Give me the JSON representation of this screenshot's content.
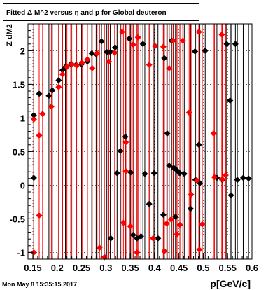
{
  "chart_data": {
    "type": "scatter",
    "title": "Fitted Δ M^2 versus η and p for Global deuteron",
    "xlabel": "p[GeV/c]",
    "ylabel": "Z dM2",
    "xlim": [
      0.14,
      0.6
    ],
    "ylim": [
      -1.1,
      2.4
    ],
    "x_ticks": [
      "0.15",
      "0.2",
      "0.25",
      "0.3",
      "0.35",
      "0.4",
      "0.45",
      "0.5",
      "0.55",
      "0.6"
    ],
    "y_ticks": [
      "-1",
      "-0.5",
      "0",
      "0.5",
      "1",
      "1.5",
      "2"
    ],
    "grid": true,
    "footer": "Mon May  8 15:35:15 2017",
    "series": [
      {
        "color": "#000000",
        "marker": "diamond",
        "points": [
          [
            0.152,
            1.04
          ],
          [
            0.152,
            0.11
          ],
          [
            0.163,
            1.36
          ],
          [
            0.183,
            1.33
          ],
          [
            0.19,
            1.41
          ],
          [
            0.203,
            1.56
          ],
          [
            0.211,
            1.71
          ],
          [
            0.217,
            1.76
          ],
          [
            0.228,
            1.8
          ],
          [
            0.239,
            1.79
          ],
          [
            0.25,
            1.8
          ],
          [
            0.262,
            1.84
          ],
          [
            0.271,
            1.96
          ],
          [
            0.28,
            1.95
          ],
          [
            0.291,
            2.14
          ],
          [
            0.302,
            1.98
          ],
          [
            0.309,
            1.98
          ],
          [
            0.319,
            2.05
          ],
          [
            0.31,
            -0.79
          ],
          [
            0.323,
            0.18
          ],
          [
            0.33,
            0.51
          ],
          [
            0.34,
            0.72
          ],
          [
            0.348,
            2.18
          ],
          [
            0.351,
            0.19
          ],
          [
            0.356,
            -0.74
          ],
          [
            0.364,
            -0.79
          ],
          [
            0.372,
            -0.76
          ],
          [
            0.376,
            2.1
          ],
          [
            0.38,
            0.17
          ],
          [
            0.389,
            -0.28
          ],
          [
            0.399,
            0.18
          ],
          [
            0.407,
            -0.79
          ],
          [
            0.418,
            -0.44
          ],
          [
            0.42,
            1.89
          ],
          [
            0.426,
            0.77
          ],
          [
            0.43,
            0.29
          ],
          [
            0.435,
            2.15
          ],
          [
            0.439,
            0.26
          ],
          [
            0.443,
            -0.47
          ],
          [
            0.446,
            0.22
          ],
          [
            0.452,
            0.18
          ],
          [
            0.461,
            0.17
          ],
          [
            0.474,
            -0.35
          ],
          [
            0.483,
            1.99
          ],
          [
            0.484,
            0.08
          ],
          [
            0.491,
            0.6
          ],
          [
            0.493,
            0.03
          ],
          [
            0.504,
            2.0
          ],
          [
            0.528,
            0.11
          ],
          [
            0.539,
            0.08
          ],
          [
            0.548,
            2.1
          ],
          [
            0.555,
            1.26
          ],
          [
            0.557,
            -0.15
          ],
          [
            0.566,
            2.1
          ],
          [
            0.57,
            0.08
          ],
          [
            0.582,
            0.11
          ],
          [
            0.593,
            0.1
          ]
        ]
      },
      {
        "color": "#ff0000",
        "marker": "diamond",
        "points": [
          [
            0.152,
            0.98
          ],
          [
            0.152,
            -1.0
          ],
          [
            0.163,
            0.74
          ],
          [
            0.163,
            -0.45
          ],
          [
            0.17,
            1.06
          ],
          [
            0.188,
            1.17
          ],
          [
            0.203,
            1.46
          ],
          [
            0.211,
            1.65
          ],
          [
            0.22,
            1.76
          ],
          [
            0.23,
            1.8
          ],
          [
            0.24,
            1.78
          ],
          [
            0.251,
            1.82
          ],
          [
            0.262,
            1.87
          ],
          [
            0.272,
            1.74
          ],
          [
            0.282,
            1.96
          ],
          [
            0.287,
            -0.93
          ],
          [
            0.297,
            -1.07
          ],
          [
            0.306,
            1.84
          ],
          [
            0.318,
            1.97
          ],
          [
            0.333,
            2.28
          ],
          [
            0.336,
            -0.56
          ],
          [
            0.341,
            0.64
          ],
          [
            0.341,
            0.21
          ],
          [
            0.35,
            -0.61
          ],
          [
            0.356,
            2.09
          ],
          [
            0.364,
            -1.0
          ],
          [
            0.366,
            2.2
          ],
          [
            0.389,
            1.79
          ],
          [
            0.397,
            -0.79
          ],
          [
            0.401,
            2.07
          ],
          [
            0.418,
            2.06
          ],
          [
            0.42,
            -0.98
          ],
          [
            0.425,
            -0.57
          ],
          [
            0.43,
            1.74
          ],
          [
            0.434,
            -0.51
          ],
          [
            0.438,
            2.15
          ],
          [
            0.446,
            -0.73
          ],
          [
            0.452,
            -0.59
          ],
          [
            0.458,
            2.15
          ],
          [
            0.471,
            1.08
          ],
          [
            0.475,
            -0.14
          ],
          [
            0.487,
            0.07
          ],
          [
            0.491,
            2.28
          ],
          [
            0.492,
            -0.96
          ],
          [
            0.498,
            -0.58
          ],
          [
            0.521,
            0.77
          ],
          [
            0.523,
            0.12
          ],
          [
            0.538,
            2.24
          ],
          [
            0.539,
            0.09
          ],
          [
            0.546,
            0.15
          ]
        ]
      }
    ]
  }
}
